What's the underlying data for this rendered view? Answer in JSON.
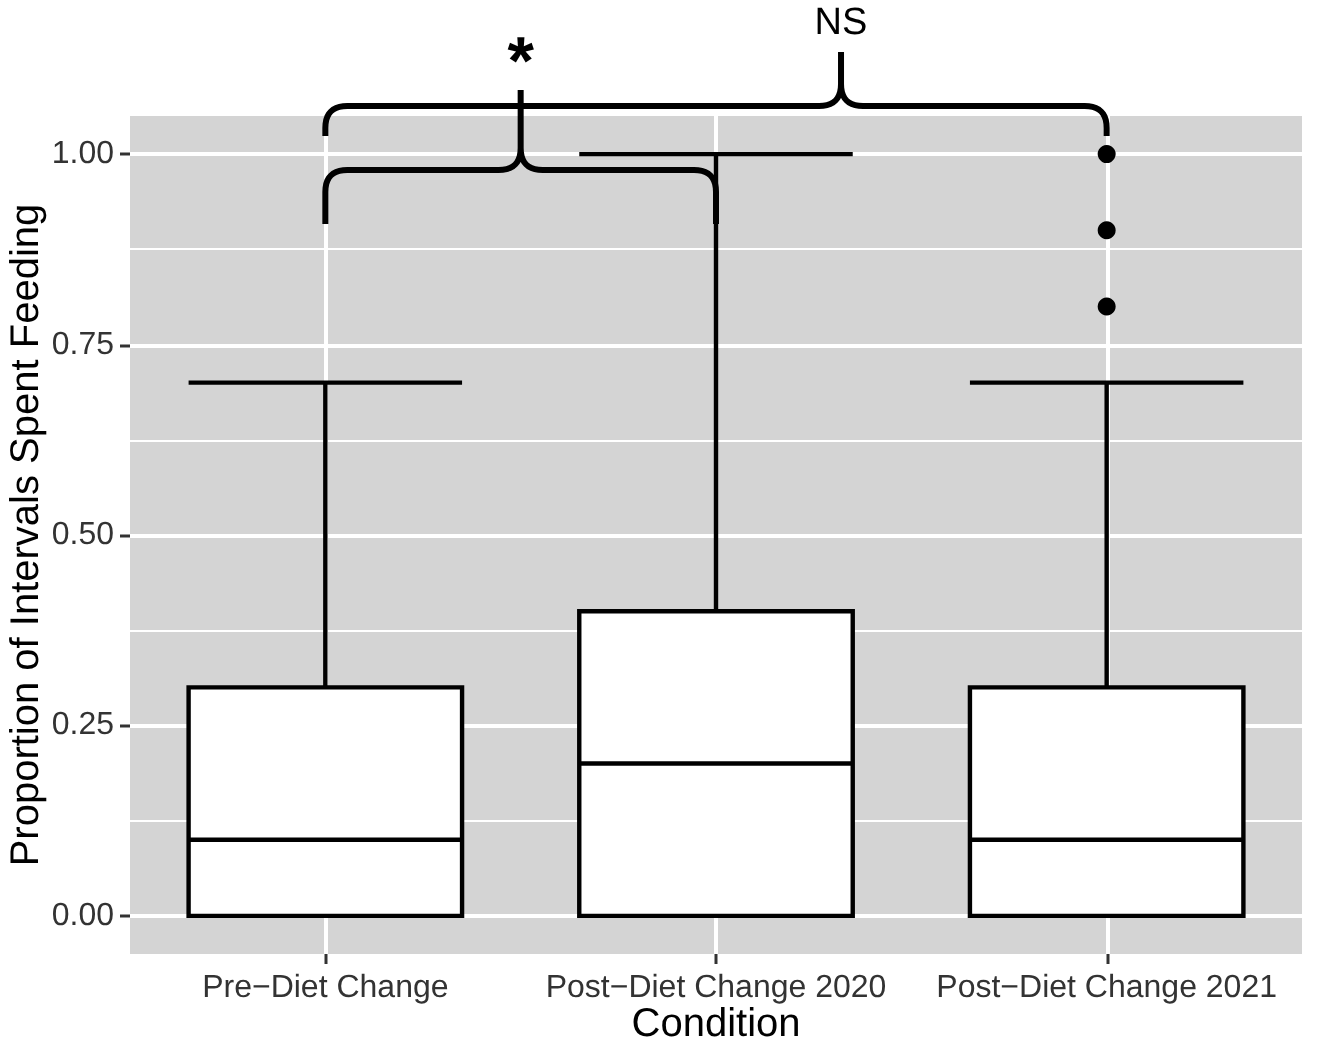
{
  "chart_data": {
    "type": "box",
    "xlabel": "Condition",
    "ylabel": "Proportion of Intervals Spent Feeding",
    "categories": [
      "Pre−Diet Change",
      "Post−Diet Change 2020",
      "Post−Diet Change 2021"
    ],
    "boxes": [
      {
        "low": 0,
        "q1": 0,
        "median": 0.1,
        "q3": 0.3,
        "high": 0.7
      },
      {
        "low": 0,
        "q1": 0,
        "median": 0.2,
        "q3": 0.4,
        "high": 1
      },
      {
        "low": 0,
        "q1": 0,
        "median": 0.1,
        "q3": 0.3,
        "high": 0.7,
        "outliers": [
          0.8,
          0.9,
          1
        ]
      }
    ],
    "ylim": [
      -0.05,
      1.05
    ],
    "yticks": [
      {
        "value": 0,
        "label": "0.00"
      },
      0.25,
      {
        "value": 0.5,
        "label": "0.50"
      },
      0.75,
      {
        "value": 1,
        "label": "1.00"
      }
    ],
    "grid": true,
    "annotations": [
      "*",
      "NS"
    ]
  }
}
